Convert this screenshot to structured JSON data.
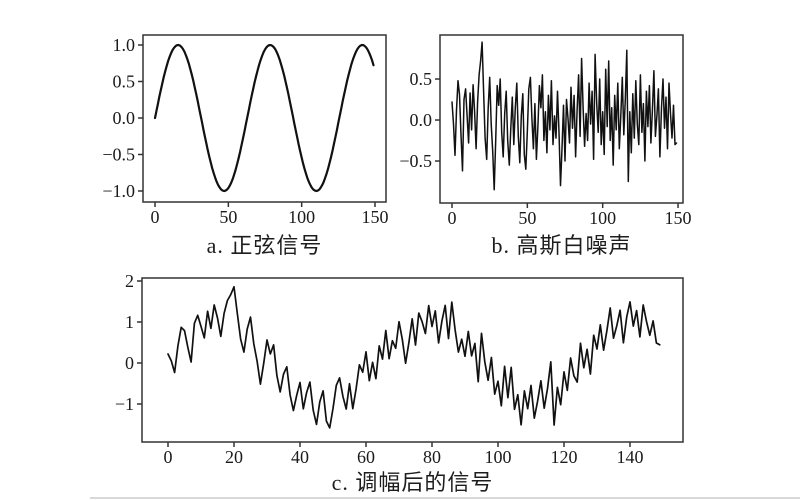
{
  "figure": {
    "background": "#ffffff",
    "line_color": "#111111",
    "axis_color": "#333333"
  },
  "chart_data": [
    {
      "id": "sine",
      "type": "line",
      "caption": "a. 正弦信号",
      "x_rule": "n = 0,1,...,149",
      "series": {
        "kind": "formula",
        "expr": "sin(0.1*n)",
        "amplitude": 1,
        "omega": 0.1,
        "points": 150
      },
      "xlim": [
        -8.2,
        157.5
      ],
      "ylim": [
        -1.151,
        1.137
      ],
      "x_ticks": {
        "values": [
          0,
          50,
          100,
          150
        ],
        "labels": [
          "0",
          "50",
          "100",
          "150"
        ]
      },
      "y_ticks": {
        "values": [
          1.0,
          0.5,
          0.0,
          -0.5,
          -1.0
        ],
        "labels": [
          "1.0",
          "0.5",
          "0.0",
          "−0.5",
          "−1.0"
        ]
      },
      "line_color": "#111111",
      "line_width": 2.2,
      "grid": false
    },
    {
      "id": "noise",
      "type": "line",
      "caption": "b. 高斯白噪声",
      "x_rule": "n = 0,1,...,149",
      "series": {
        "kind": "values",
        "values": [
          0.22,
          -0.05,
          -0.43,
          0.12,
          0.48,
          0.31,
          -0.18,
          -0.62,
          0.25,
          0.38,
          0.05,
          -0.28,
          0.33,
          -0.12,
          0.43,
          0.1,
          -0.35,
          0.22,
          0.55,
          0.72,
          0.95,
          0.35,
          -0.22,
          -0.48,
          0.15,
          0.52,
          -0.05,
          -0.38,
          -0.85,
          -0.25,
          0.42,
          0.18,
          0.5,
          -0.15,
          -0.45,
          0.08,
          0.35,
          -0.25,
          -0.55,
          -0.1,
          0.28,
          -0.3,
          0.15,
          0.45,
          -0.2,
          -0.52,
          0.05,
          0.32,
          -0.42,
          -0.6,
          -0.15,
          0.38,
          0.52,
          0.02,
          -0.35,
          0.2,
          -0.48,
          -0.08,
          0.42,
          0.15,
          0.55,
          -0.25,
          0.1,
          -0.4,
          0.3,
          -0.12,
          0.48,
          -0.3,
          0.05,
          -0.22,
          0.35,
          -0.15,
          -0.8,
          -0.35,
          0.18,
          -0.5,
          0.25,
          0.02,
          -0.28,
          0.4,
          -0.1,
          0.3,
          -0.45,
          0.12,
          0.55,
          -0.2,
          0.75,
          0.15,
          -0.32,
          0.08,
          -0.25,
          0.45,
          -0.05,
          0.35,
          -0.48,
          0.8,
          0.2,
          -0.15,
          0.5,
          -0.3,
          0.1,
          -0.42,
          0.62,
          -0.08,
          0.72,
          -0.25,
          0.15,
          -0.55,
          0.3,
          -0.12,
          0.45,
          -0.35,
          0.05,
          0.52,
          -0.18,
          0.25,
          0.85,
          -0.75,
          0.1,
          -0.4,
          0.32,
          -0.22,
          0.48,
          -0.05,
          -0.3,
          0.55,
          -0.15,
          0.2,
          -0.5,
          0.35,
          -0.08,
          0.42,
          -0.28,
          0.12,
          0.6,
          -0.2,
          0.05,
          0.38,
          -0.45,
          0.15,
          0.5,
          -0.1,
          0.28,
          -0.35,
          0.45,
          0.08,
          -0.22,
          0.18,
          -0.3,
          -0.28
        ]
      },
      "xlim": [
        -7.96,
        153.3
      ],
      "ylim": [
        -1.012,
        1.037
      ],
      "x_ticks": {
        "values": [
          0,
          50,
          100,
          150
        ],
        "labels": [
          "0",
          "50",
          "100",
          "150"
        ]
      },
      "y_ticks": {
        "values": [
          0.5,
          0.0,
          -0.5
        ],
        "labels": [
          "0.5",
          "0.0",
          "−0.5"
        ]
      },
      "line_color": "#111111",
      "line_width": 1.5,
      "grid": false
    },
    {
      "id": "modulated",
      "type": "line",
      "caption": "c. 调幅后的信号",
      "x_rule": "n = 0,1,...,149",
      "series": {
        "kind": "sum",
        "of": [
          "sine",
          "noise"
        ],
        "note": "modulated = sine + noise"
      },
      "xlim": [
        -7.88,
        156.06
      ],
      "ylim": [
        -1.927,
        2.073
      ],
      "x_ticks": {
        "values": [
          0,
          20,
          40,
          60,
          80,
          100,
          120,
          140
        ],
        "labels": [
          "0",
          "20",
          "40",
          "60",
          "80",
          "100",
          "120",
          "140"
        ]
      },
      "y_ticks": {
        "values": [
          2,
          1,
          0,
          -1
        ],
        "labels": [
          "2",
          "1",
          "0",
          "−1"
        ]
      },
      "line_color": "#111111",
      "line_width": 1.7,
      "grid": false
    }
  ]
}
